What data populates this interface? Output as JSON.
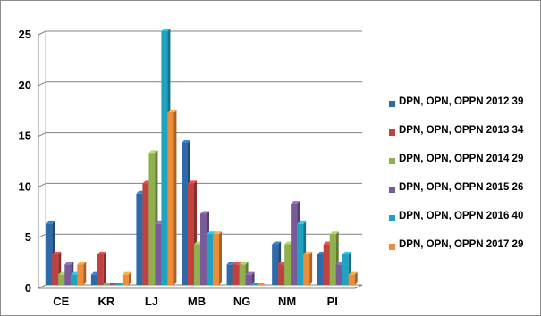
{
  "chart_data": {
    "type": "bar",
    "title": "",
    "xlabel": "",
    "ylabel": "",
    "ylim": [
      0,
      25
    ],
    "yticks": [
      "0",
      "5",
      "10",
      "15",
      "20",
      "25"
    ],
    "grid": true,
    "legend_position": "right",
    "categories": [
      "CE",
      "KR",
      "LJ",
      "MB",
      "NG",
      "NM",
      "PI"
    ],
    "series": [
      {
        "name": "DPN, OPN, OPPN 2012  39",
        "color": "#2e6aa8",
        "values": [
          6,
          1,
          9,
          14,
          2,
          4,
          3
        ]
      },
      {
        "name": "DPN, OPN, OPPN 2013  34",
        "color": "#c0413e",
        "values": [
          3,
          3,
          10,
          10,
          2,
          2,
          4
        ]
      },
      {
        "name": "DPN, OPN, OPPN 2014  29",
        "color": "#8eb04f",
        "values": [
          1,
          0,
          13,
          4,
          2,
          4,
          5
        ]
      },
      {
        "name": "DPN, OPN, OPPN 2015  26",
        "color": "#7a5b9a",
        "values": [
          2,
          0,
          6,
          7,
          1,
          8,
          2
        ]
      },
      {
        "name": "DPN, OPN, OPPN 2016  40",
        "color": "#1fa3c0",
        "values": [
          1,
          0,
          25,
          5,
          0,
          6,
          3
        ]
      },
      {
        "name": "DPN, OPN, OPPN 2017 29",
        "color": "#ef8c37",
        "values": [
          2,
          1,
          17,
          5,
          0,
          3,
          1
        ]
      }
    ]
  }
}
